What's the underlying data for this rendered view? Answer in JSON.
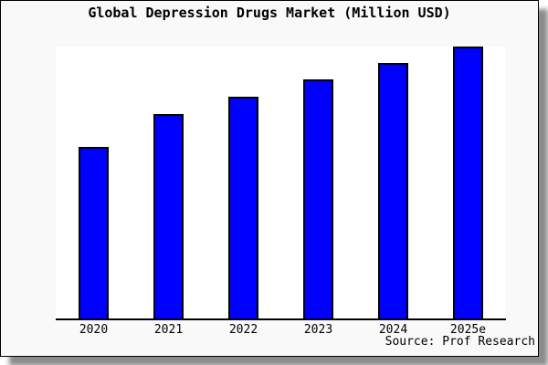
{
  "title": "Global Depression Drugs Market (Million USD)",
  "source": "Source: Prof Research",
  "colors": {
    "bar_fill": "#0000ff",
    "bar_border": "#000000",
    "card_background": "#f9f9f9",
    "plot_background": "#ffffff",
    "axis_line": "#000000",
    "text": "#000000"
  },
  "chart_data": {
    "type": "bar",
    "title": "Global Depression Drugs Market (Million USD)",
    "categories": [
      "2020",
      "2021",
      "2022",
      "2023",
      "2024",
      "2025e"
    ],
    "values": [
      63.2,
      75.3,
      81.6,
      88.0,
      94.0,
      100
    ],
    "value_scale_note": "y-axis has no tick labels or gridlines; values are relative bar heights as percent of the 2025e bar",
    "xlabel": "",
    "ylabel": "",
    "ylim": [
      0,
      100
    ],
    "grid": false,
    "legend": false,
    "annotation": "Source: Prof Research"
  }
}
